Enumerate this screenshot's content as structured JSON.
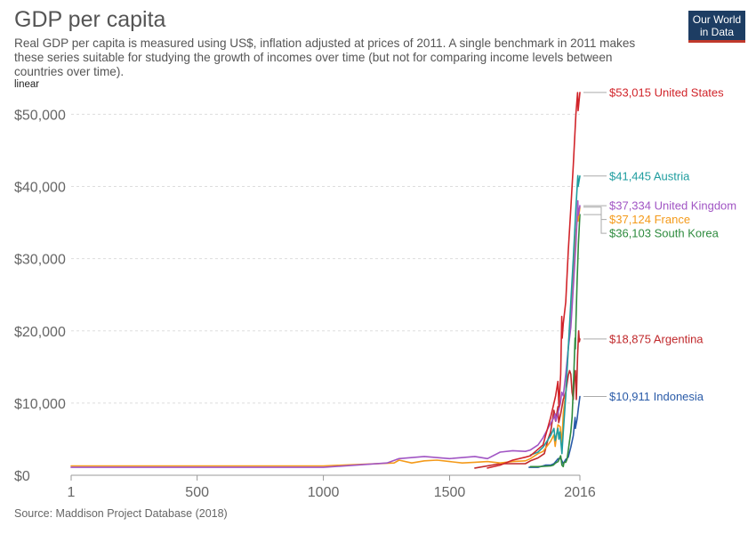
{
  "header": {
    "title": "GDP per capita",
    "subtitle": "Real GDP per capita is measured using US$, inflation adjusted at prices of 2011. A single benchmark in 2011 makes these series suitable for studying the growth of incomes over time (but not for comparing income levels between countries over time).",
    "scale_label": "linear",
    "logo_text": [
      "Our World",
      "in Data"
    ]
  },
  "footer": {
    "source": "Source: Maddison Project Database (2018)"
  },
  "chart_data": {
    "type": "line",
    "title": "GDP per capita",
    "xlabel": "",
    "ylabel": "",
    "xlim": [
      1,
      2016
    ],
    "ylim": [
      0,
      53500
    ],
    "grid": true,
    "legend_placement": "right (end labels)",
    "x_ticks": [
      {
        "value": 1,
        "label": "1"
      },
      {
        "value": 500,
        "label": "500"
      },
      {
        "value": 1000,
        "label": "1000"
      },
      {
        "value": 1500,
        "label": "1500"
      },
      {
        "value": 2016,
        "label": "2016"
      }
    ],
    "y_ticks": [
      {
        "value": 0,
        "label": "$0"
      },
      {
        "value": 10000,
        "label": "$10,000"
      },
      {
        "value": 20000,
        "label": "$20,000"
      },
      {
        "value": 30000,
        "label": "$30,000"
      },
      {
        "value": 40000,
        "label": "$40,000"
      },
      {
        "value": 50000,
        "label": "$50,000"
      }
    ],
    "series": [
      {
        "name": "Indonesia",
        "color": "#2a5ba8",
        "end_label": "$10,911 Indonesia",
        "x": [
          1815,
          1850,
          1880,
          1900,
          1913,
          1930,
          1941,
          1950,
          1960,
          1970,
          1980,
          1990,
          1997,
          1998,
          2005,
          2010,
          2016
        ],
        "y": [
          1100,
          1100,
          1400,
          1400,
          1600,
          2300,
          2300,
          1600,
          2200,
          2500,
          3900,
          5500,
          8000,
          6500,
          7800,
          9300,
          10911
        ]
      },
      {
        "name": "Argentina",
        "color": "#c0282b",
        "end_label": "$18,875 Argentina",
        "x": [
          1600,
          1700,
          1800,
          1820,
          1850,
          1875,
          1890,
          1900,
          1913,
          1920,
          1929,
          1932,
          1940,
          1950,
          1960,
          1970,
          1975,
          1980,
          1985,
          1990,
          1994,
          1998,
          2002,
          2007,
          2011,
          2014,
          2016
        ],
        "y": [
          1000,
          1600,
          1600,
          2000,
          2400,
          3000,
          5000,
          6000,
          9000,
          7500,
          9500,
          7300,
          8500,
          10500,
          11500,
          13800,
          14500,
          14000,
          11500,
          10500,
          13500,
          14500,
          10500,
          16500,
          20000,
          18500,
          18875
        ]
      },
      {
        "name": "South Korea",
        "color": "#2e8b3e",
        "end_label": "$36,103 South Korea",
        "x": [
          1820,
          1850,
          1900,
          1911,
          1920,
          1930,
          1940,
          1945,
          1950,
          1953,
          1960,
          1965,
          1970,
          1975,
          1980,
          1985,
          1990,
          1995,
          1997,
          1998,
          2000,
          2005,
          2010,
          2016
        ],
        "y": [
          1200,
          1200,
          1300,
          1400,
          1700,
          1900,
          2700,
          1400,
          1200,
          1800,
          1800,
          2200,
          3400,
          4800,
          6000,
          8000,
          12000,
          17000,
          19000,
          17500,
          21000,
          27000,
          32000,
          36103
        ]
      },
      {
        "name": "France",
        "color": "#f49a1a",
        "end_label": "$37,124 France",
        "x": [
          1,
          1000,
          1280,
          1300,
          1350,
          1400,
          1450,
          1500,
          1550,
          1600,
          1650,
          1700,
          1750,
          1800,
          1820,
          1850,
          1870,
          1900,
          1913,
          1918,
          1929,
          1938,
          1944,
          1950,
          1960,
          1970,
          1980,
          1990,
          2000,
          2008,
          2009,
          2016
        ],
        "y": [
          1300,
          1300,
          1700,
          2100,
          1700,
          2000,
          2100,
          1900,
          1700,
          1800,
          1900,
          1700,
          1900,
          2000,
          2300,
          3000,
          3300,
          4700,
          5600,
          4000,
          7000,
          6700,
          4200,
          8500,
          11500,
          17500,
          22500,
          28000,
          33500,
          36500,
          35200,
          37124
        ]
      },
      {
        "name": "United Kingdom",
        "color": "#a155c4",
        "end_label": "$37,334 United Kingdom",
        "x": [
          1,
          1000,
          1252,
          1300,
          1400,
          1500,
          1600,
          1650,
          1700,
          1750,
          1800,
          1820,
          1850,
          1870,
          1900,
          1913,
          1918,
          1921,
          1929,
          1939,
          1944,
          1950,
          1960,
          1970,
          1980,
          1990,
          2000,
          2008,
          2009,
          2016
        ],
        "y": [
          1100,
          1100,
          1700,
          2300,
          2600,
          2300,
          2600,
          2300,
          3200,
          3400,
          3300,
          3500,
          4200,
          5200,
          7200,
          8000,
          8500,
          7500,
          8600,
          10000,
          11500,
          11000,
          14000,
          17500,
          20500,
          26000,
          32000,
          38000,
          36000,
          37334
        ]
      },
      {
        "name": "Austria",
        "color": "#1f9d9f",
        "end_label": "$41,445 Austria",
        "x": [
          1820,
          1850,
          1870,
          1900,
          1913,
          1918,
          1929,
          1933,
          1937,
          1945,
          1950,
          1960,
          1970,
          1980,
          1990,
          2000,
          2008,
          2009,
          2016
        ],
        "y": [
          2800,
          3200,
          3900,
          5500,
          6500,
          4800,
          6500,
          5000,
          6000,
          3000,
          6000,
          11000,
          17500,
          24000,
          30000,
          37000,
          41500,
          40000,
          41445
        ]
      },
      {
        "name": "United States",
        "color": "#d1242a",
        "end_label": "$53,015 United States",
        "x": [
          1650,
          1700,
          1750,
          1800,
          1820,
          1850,
          1870,
          1880,
          1900,
          1913,
          1920,
          1929,
          1933,
          1940,
          1944,
          1946,
          1950,
          1960,
          1970,
          1980,
          1990,
          2000,
          2007,
          2009,
          2016
        ],
        "y": [
          1000,
          1400,
          2100,
          2500,
          2700,
          3600,
          4200,
          5500,
          8000,
          10000,
          11000,
          13000,
          9500,
          14000,
          22000,
          19000,
          21000,
          24000,
          31000,
          37000,
          43000,
          50000,
          53000,
          50500,
          53015
        ]
      }
    ]
  }
}
